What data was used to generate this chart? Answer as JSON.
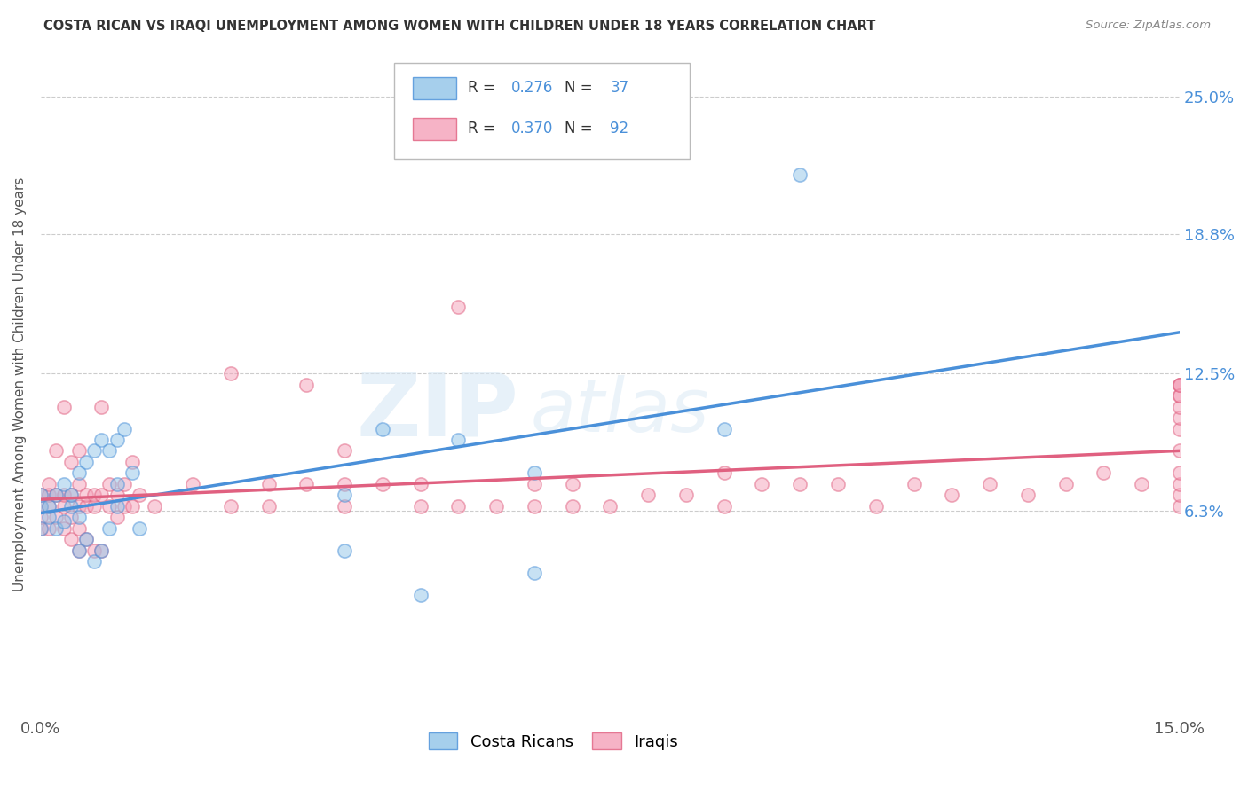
{
  "title": "COSTA RICAN VS IRAQI UNEMPLOYMENT AMONG WOMEN WITH CHILDREN UNDER 18 YEARS CORRELATION CHART",
  "source": "Source: ZipAtlas.com",
  "ylabel": "Unemployment Among Women with Children Under 18 years",
  "xlim": [
    0,
    0.15
  ],
  "ylim": [
    -0.03,
    0.27
  ],
  "xticks": [
    0.0,
    0.025,
    0.05,
    0.075,
    0.1,
    0.125,
    0.15
  ],
  "ytick_labels_right": [
    "6.3%",
    "12.5%",
    "18.8%",
    "25.0%"
  ],
  "ytick_vals_right": [
    0.063,
    0.125,
    0.188,
    0.25
  ],
  "cr_color": "#90c4e8",
  "iraqi_color": "#f4a0b8",
  "cr_line_color": "#4a90d9",
  "iraqi_line_color": "#e06080",
  "background_color": "#ffffff",
  "grid_color": "#cccccc",
  "title_color": "#333333",
  "axis_label_color": "#555555",
  "right_tick_color": "#4a90d9",
  "dot_size": 120,
  "dot_alpha": 0.5,
  "costa_ricans_x": [
    0.0,
    0.0,
    0.0,
    0.001,
    0.001,
    0.002,
    0.002,
    0.003,
    0.003,
    0.004,
    0.004,
    0.005,
    0.005,
    0.005,
    0.006,
    0.006,
    0.007,
    0.007,
    0.008,
    0.008,
    0.009,
    0.009,
    0.01,
    0.01,
    0.01,
    0.011,
    0.012,
    0.013,
    0.04,
    0.04,
    0.05,
    0.055,
    0.065,
    0.065,
    0.09,
    0.1,
    0.045
  ],
  "costa_ricans_y": [
    0.055,
    0.065,
    0.07,
    0.06,
    0.065,
    0.055,
    0.07,
    0.058,
    0.075,
    0.065,
    0.07,
    0.045,
    0.06,
    0.08,
    0.05,
    0.085,
    0.04,
    0.09,
    0.045,
    0.095,
    0.055,
    0.09,
    0.065,
    0.075,
    0.095,
    0.1,
    0.08,
    0.055,
    0.07,
    0.045,
    0.025,
    0.095,
    0.08,
    0.035,
    0.1,
    0.215,
    0.1
  ],
  "iraqis_x": [
    0.0,
    0.0,
    0.0,
    0.0,
    0.001,
    0.001,
    0.001,
    0.001,
    0.002,
    0.002,
    0.002,
    0.003,
    0.003,
    0.003,
    0.003,
    0.004,
    0.004,
    0.004,
    0.004,
    0.005,
    0.005,
    0.005,
    0.005,
    0.005,
    0.006,
    0.006,
    0.006,
    0.007,
    0.007,
    0.007,
    0.008,
    0.008,
    0.008,
    0.009,
    0.009,
    0.01,
    0.01,
    0.011,
    0.011,
    0.012,
    0.012,
    0.013,
    0.015,
    0.02,
    0.025,
    0.025,
    0.03,
    0.03,
    0.035,
    0.035,
    0.04,
    0.04,
    0.04,
    0.045,
    0.05,
    0.05,
    0.055,
    0.055,
    0.06,
    0.065,
    0.065,
    0.07,
    0.07,
    0.075,
    0.08,
    0.085,
    0.09,
    0.09,
    0.095,
    0.1,
    0.105,
    0.11,
    0.115,
    0.12,
    0.125,
    0.13,
    0.135,
    0.14,
    0.145,
    0.15,
    0.15,
    0.15,
    0.15,
    0.15,
    0.15,
    0.15,
    0.15,
    0.15,
    0.15,
    0.15,
    0.15,
    0.15
  ],
  "iraqis_y": [
    0.055,
    0.06,
    0.065,
    0.07,
    0.055,
    0.065,
    0.07,
    0.075,
    0.06,
    0.07,
    0.09,
    0.055,
    0.065,
    0.07,
    0.11,
    0.05,
    0.06,
    0.07,
    0.085,
    0.045,
    0.055,
    0.065,
    0.075,
    0.09,
    0.05,
    0.065,
    0.07,
    0.045,
    0.065,
    0.07,
    0.045,
    0.07,
    0.11,
    0.065,
    0.075,
    0.06,
    0.07,
    0.065,
    0.075,
    0.065,
    0.085,
    0.07,
    0.065,
    0.075,
    0.065,
    0.125,
    0.065,
    0.075,
    0.075,
    0.12,
    0.065,
    0.075,
    0.09,
    0.075,
    0.065,
    0.075,
    0.065,
    0.155,
    0.065,
    0.065,
    0.075,
    0.065,
    0.075,
    0.065,
    0.07,
    0.07,
    0.065,
    0.08,
    0.075,
    0.075,
    0.075,
    0.065,
    0.075,
    0.07,
    0.075,
    0.07,
    0.075,
    0.08,
    0.075,
    0.065,
    0.07,
    0.075,
    0.08,
    0.09,
    0.1,
    0.105,
    0.11,
    0.115,
    0.12,
    0.12,
    0.115,
    0.12
  ]
}
